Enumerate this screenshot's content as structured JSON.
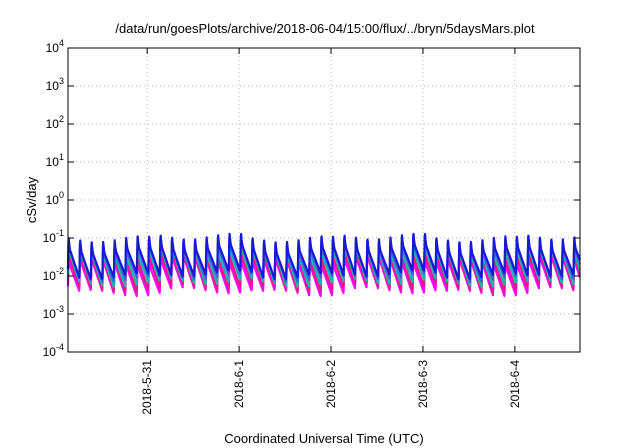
{
  "chart_data": {
    "type": "line",
    "title": "/data/run/goesPlots/archive/2018-06-04/15:00/flux/../bryn/5daysMars.plot",
    "xlabel": "Coordinated Universal Time (UTC)",
    "ylabel": "cSv/day",
    "y_scale": "log",
    "ylim": [
      0.0001,
      10000
    ],
    "xlim": [
      "2018-05-30T03:20",
      "2018-06-04T17:00"
    ],
    "grid": true,
    "x_ticks": [
      {
        "x": "2018-05-31",
        "label": "2018-5-31"
      },
      {
        "x": "2018-06-01",
        "label": "2018-6-1"
      },
      {
        "x": "2018-06-02",
        "label": "2018-6-2"
      },
      {
        "x": "2018-06-03",
        "label": "2018-6-3"
      },
      {
        "x": "2018-06-04",
        "label": "2018-6-4"
      }
    ],
    "y_ticks": [
      {
        "y": 0.0001,
        "base": "10",
        "exp": "-4"
      },
      {
        "y": 0.001,
        "base": "10",
        "exp": "-3"
      },
      {
        "y": 0.01,
        "base": "10",
        "exp": "-2"
      },
      {
        "y": 0.1,
        "base": "10",
        "exp": "-1"
      },
      {
        "y": 1,
        "base": "10",
        "exp": "0"
      },
      {
        "y": 10,
        "base": "10",
        "exp": "1"
      },
      {
        "y": 100,
        "base": "10",
        "exp": "2"
      },
      {
        "y": 1000,
        "base": "10",
        "exp": "3"
      },
      {
        "y": 10000,
        "base": "10",
        "exp": "4"
      }
    ],
    "pattern": {
      "cycle_hours": 3,
      "first_peak": "2018-05-30T03:30",
      "peak_value": 0.1,
      "trough_value": 0.003
    },
    "series": [
      {
        "color": "#ff00ff",
        "peak": 0.05,
        "trough": 0.0032
      },
      {
        "color": "#e8168a",
        "peak": 0.07,
        "trough": 0.004
      },
      {
        "color": "#20b0b0",
        "peak": 0.09,
        "trough": 0.0055
      },
      {
        "color": "#4060e0",
        "peak": 0.11,
        "trough": 0.0075
      },
      {
        "color": "#1818d8",
        "peak": 0.12,
        "trough": 0.009
      }
    ]
  }
}
